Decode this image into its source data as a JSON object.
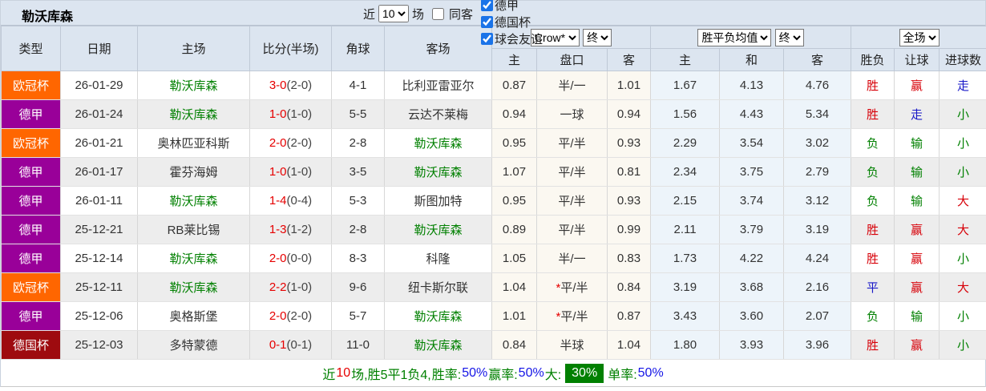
{
  "topbar": {
    "title": "勒沃库森",
    "recent_label": "近",
    "recent_value": "10",
    "matches_label": "场",
    "same_opponent_label": "同客",
    "same_opponent_checked": false,
    "filters": [
      {
        "label": "欧冠杯",
        "checked": true
      },
      {
        "label": "德甲",
        "checked": true
      },
      {
        "label": "德国杯",
        "checked": true
      },
      {
        "label": "球会友谊",
        "checked": true
      }
    ]
  },
  "table": {
    "headers": {
      "type": "类型",
      "date": "日期",
      "home": "主场",
      "score": "比分(半场)",
      "corner": "角球",
      "away": "客场",
      "odds_source_select": "Crow*",
      "odds_time_select": "终",
      "avg_select": "胜平负均值",
      "avg_time_select": "终",
      "scope_select": "全场",
      "sub_home_odds": "主",
      "sub_handicap": "盘口",
      "sub_away_odds": "客",
      "sub_avg_home": "主",
      "sub_avg_draw": "和",
      "sub_avg_away": "客",
      "sub_wdl": "胜负",
      "sub_handicap_result": "让球",
      "sub_goals": "进球数"
    },
    "league_colors": {
      "欧冠杯": "#ff6600",
      "德甲": "#990099",
      "德国杯": "#9e0b0f"
    },
    "highlight_team": "勒沃库森",
    "highlight_color": "#008000",
    "rows": [
      {
        "league": "欧冠杯",
        "date": "26-01-29",
        "home": "勒沃库森",
        "score": "3-0",
        "half": "(2-0)",
        "corner": "4-1",
        "away": "比利亚雷亚尔",
        "odds_home": "0.87",
        "handicap": "半/一",
        "handicap_star": false,
        "odds_away": "1.01",
        "avg_home": "1.67",
        "avg_draw": "4.13",
        "avg_away": "4.76",
        "res_wdl": "胜",
        "res_wdl_c": "red",
        "res_handicap": "赢",
        "res_handicap_c": "red",
        "res_goals": "走",
        "res_goals_c": "blue"
      },
      {
        "league": "德甲",
        "date": "26-01-24",
        "home": "勒沃库森",
        "score": "1-0",
        "half": "(1-0)",
        "corner": "5-5",
        "away": "云达不莱梅",
        "odds_home": "0.94",
        "handicap": "一球",
        "handicap_star": false,
        "odds_away": "0.94",
        "avg_home": "1.56",
        "avg_draw": "4.43",
        "avg_away": "5.34",
        "res_wdl": "胜",
        "res_wdl_c": "red",
        "res_handicap": "走",
        "res_handicap_c": "blue",
        "res_goals": "小",
        "res_goals_c": "green"
      },
      {
        "league": "欧冠杯",
        "date": "26-01-21",
        "home": "奥林匹亚科斯",
        "score": "2-0",
        "half": "(2-0)",
        "corner": "2-8",
        "away": "勒沃库森",
        "odds_home": "0.95",
        "handicap": "平/半",
        "handicap_star": false,
        "odds_away": "0.93",
        "avg_home": "2.29",
        "avg_draw": "3.54",
        "avg_away": "3.02",
        "res_wdl": "负",
        "res_wdl_c": "green",
        "res_handicap": "输",
        "res_handicap_c": "green",
        "res_goals": "小",
        "res_goals_c": "green"
      },
      {
        "league": "德甲",
        "date": "26-01-17",
        "home": "霍芬海姆",
        "score": "1-0",
        "half": "(1-0)",
        "corner": "3-5",
        "away": "勒沃库森",
        "odds_home": "1.07",
        "handicap": "平/半",
        "handicap_star": false,
        "odds_away": "0.81",
        "avg_home": "2.34",
        "avg_draw": "3.75",
        "avg_away": "2.79",
        "res_wdl": "负",
        "res_wdl_c": "green",
        "res_handicap": "输",
        "res_handicap_c": "green",
        "res_goals": "小",
        "res_goals_c": "green"
      },
      {
        "league": "德甲",
        "date": "26-01-11",
        "home": "勒沃库森",
        "score": "1-4",
        "half": "(0-4)",
        "corner": "5-3",
        "away": "斯图加特",
        "odds_home": "0.95",
        "handicap": "平/半",
        "handicap_star": false,
        "odds_away": "0.93",
        "avg_home": "2.15",
        "avg_draw": "3.74",
        "avg_away": "3.12",
        "res_wdl": "负",
        "res_wdl_c": "green",
        "res_handicap": "输",
        "res_handicap_c": "green",
        "res_goals": "大",
        "res_goals_c": "red"
      },
      {
        "league": "德甲",
        "date": "25-12-21",
        "home": "RB莱比锡",
        "score": "1-3",
        "half": "(1-2)",
        "corner": "2-8",
        "away": "勒沃库森",
        "odds_home": "0.89",
        "handicap": "平/半",
        "handicap_star": false,
        "odds_away": "0.99",
        "avg_home": "2.11",
        "avg_draw": "3.79",
        "avg_away": "3.19",
        "res_wdl": "胜",
        "res_wdl_c": "red",
        "res_handicap": "赢",
        "res_handicap_c": "red",
        "res_goals": "大",
        "res_goals_c": "red"
      },
      {
        "league": "德甲",
        "date": "25-12-14",
        "home": "勒沃库森",
        "score": "2-0",
        "half": "(0-0)",
        "corner": "8-3",
        "away": "科隆",
        "odds_home": "1.05",
        "handicap": "半/一",
        "handicap_star": false,
        "odds_away": "0.83",
        "avg_home": "1.73",
        "avg_draw": "4.22",
        "avg_away": "4.24",
        "res_wdl": "胜",
        "res_wdl_c": "red",
        "res_handicap": "赢",
        "res_handicap_c": "red",
        "res_goals": "小",
        "res_goals_c": "green"
      },
      {
        "league": "欧冠杯",
        "date": "25-12-11",
        "home": "勒沃库森",
        "score": "2-2",
        "half": "(1-0)",
        "corner": "9-6",
        "away": "纽卡斯尔联",
        "odds_home": "1.04",
        "handicap": "平/半",
        "handicap_star": true,
        "odds_away": "0.84",
        "avg_home": "3.19",
        "avg_draw": "3.68",
        "avg_away": "2.16",
        "res_wdl": "平",
        "res_wdl_c": "blue",
        "res_handicap": "赢",
        "res_handicap_c": "red",
        "res_goals": "大",
        "res_goals_c": "red"
      },
      {
        "league": "德甲",
        "date": "25-12-06",
        "home": "奥格斯堡",
        "score": "2-0",
        "half": "(2-0)",
        "corner": "5-7",
        "away": "勒沃库森",
        "odds_home": "1.01",
        "handicap": "平/半",
        "handicap_star": true,
        "odds_away": "0.87",
        "avg_home": "3.43",
        "avg_draw": "3.60",
        "avg_away": "2.07",
        "res_wdl": "负",
        "res_wdl_c": "green",
        "res_handicap": "输",
        "res_handicap_c": "green",
        "res_goals": "小",
        "res_goals_c": "green"
      },
      {
        "league": "德国杯",
        "date": "25-12-03",
        "home": "多特蒙德",
        "score": "0-1",
        "half": "(0-1)",
        "corner": "11-0",
        "away": "勒沃库森",
        "odds_home": "0.84",
        "handicap": "半球",
        "handicap_star": false,
        "odds_away": "1.04",
        "avg_home": "1.80",
        "avg_draw": "3.93",
        "avg_away": "3.96",
        "res_wdl": "胜",
        "res_wdl_c": "red",
        "res_handicap": "赢",
        "res_handicap_c": "red",
        "res_goals": "小",
        "res_goals_c": "green"
      }
    ]
  },
  "footer": {
    "parts": [
      {
        "text": "近",
        "style": "green"
      },
      {
        "text": "10",
        "style": "red"
      },
      {
        "text": "场,胜5平1负4, ",
        "style": "green"
      },
      {
        "text": "胜率:",
        "style": "green"
      },
      {
        "text": "50%",
        "style": "blue"
      },
      {
        "text": " 赢率:",
        "style": "green"
      },
      {
        "text": "50%",
        "style": "blue"
      },
      {
        "text": " 大:",
        "style": "green"
      },
      {
        "text": "30%",
        "style": "badge"
      },
      {
        "text": " 单率:",
        "style": "green"
      },
      {
        "text": "50%",
        "style": "blue"
      }
    ]
  }
}
